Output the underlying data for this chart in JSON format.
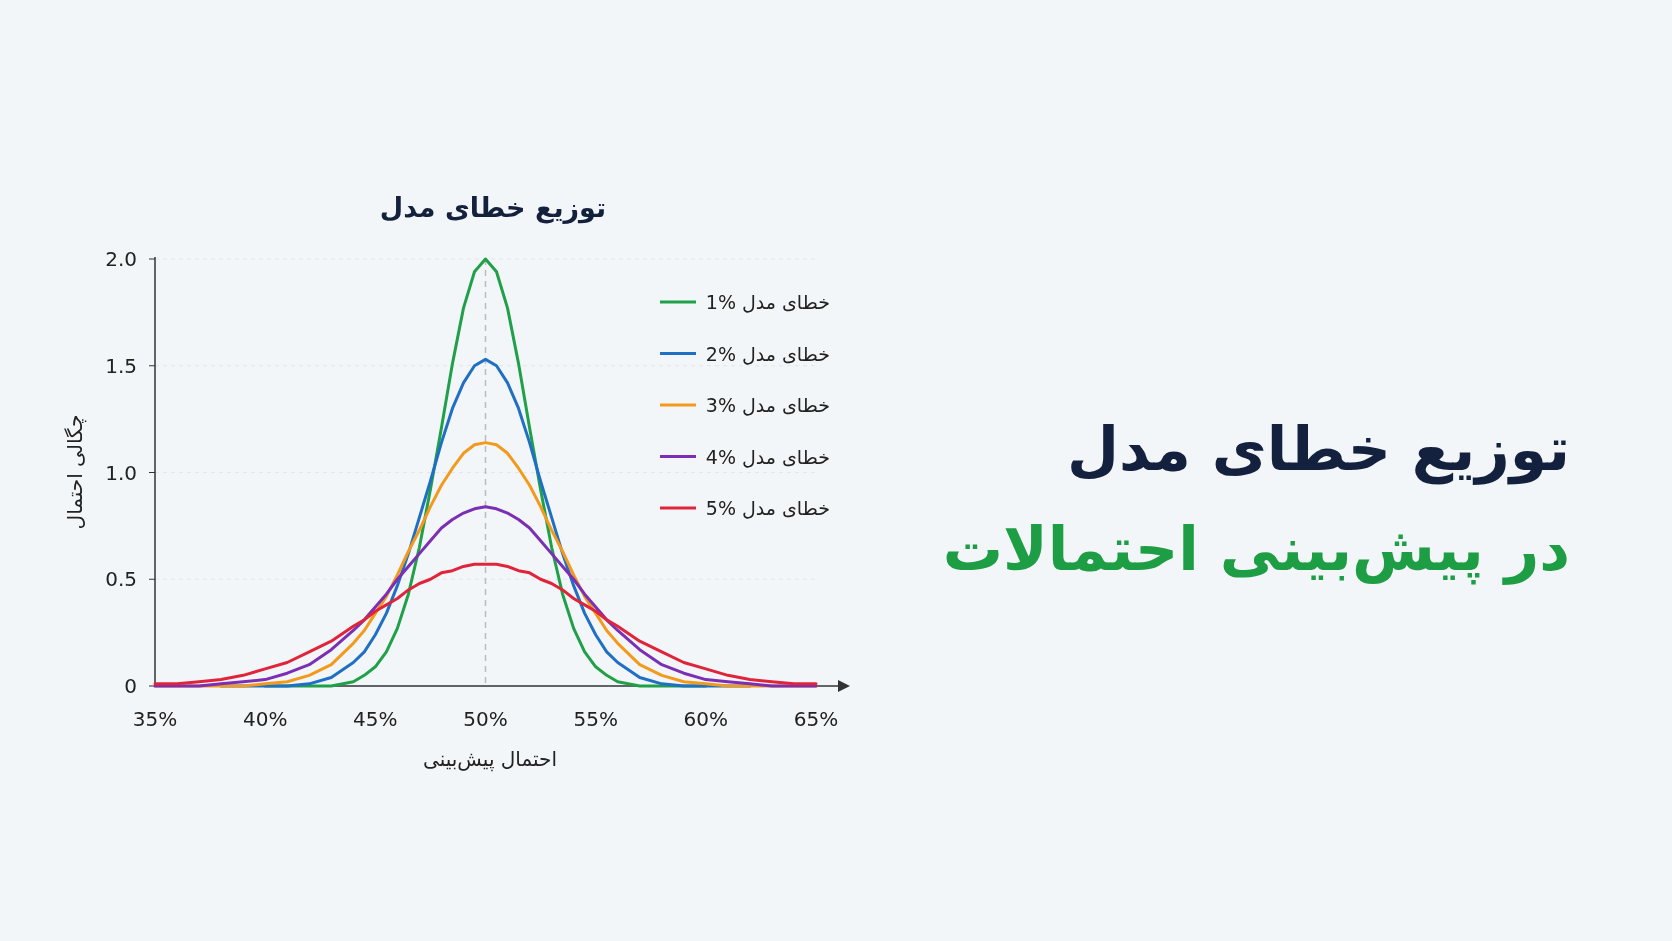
{
  "chart_data": {
    "type": "line",
    "title": "توزیع خطای مدل",
    "xlabel": "احتمال پیش‌بینی",
    "ylabel": "چگالی احتمال",
    "annotations": [
      "توزیع خطای مدل",
      "در پیش‌بینی احتمالات"
    ],
    "x": [
      35,
      36,
      37,
      38,
      39,
      40,
      41,
      42,
      43,
      44,
      44.5,
      45,
      45.5,
      46,
      46.5,
      47,
      47.5,
      48,
      48.5,
      49,
      49.5,
      50,
      50.5,
      51,
      51.5,
      52,
      52.5,
      53,
      53.5,
      54,
      54.5,
      55,
      55.5,
      56,
      57,
      58,
      59,
      60,
      61,
      62,
      63,
      64,
      65
    ],
    "xlim": [
      35,
      65
    ],
    "xticks": [
      {
        "value": 35,
        "label": "35%"
      },
      {
        "value": 40,
        "label": "40%"
      },
      {
        "value": 45,
        "label": "45%"
      },
      {
        "value": 50,
        "label": "50%"
      },
      {
        "value": 55,
        "label": "55%"
      },
      {
        "value": 60,
        "label": "60%"
      },
      {
        "value": 65,
        "label": "65%"
      }
    ],
    "ylim": [
      0,
      2.0
    ],
    "yticks": [
      0,
      0.5,
      {
        "value": 1.0,
        "label": "1.0"
      },
      1.5,
      {
        "value": 2.0,
        "label": "2.0"
      }
    ],
    "grid": "y",
    "legend": "top right",
    "marker": "none",
    "line_style": "solid",
    "ref_lines": [
      {
        "axis": "x",
        "value": 50,
        "color": "#bbbbbb",
        "line_style": "dashed"
      }
    ],
    "series": [
      {
        "name": "خطای مدل %1",
        "color": "#1fa049",
        "values": [
          null,
          null,
          null,
          null,
          null,
          0,
          0,
          0,
          0,
          0.02,
          0.05,
          0.09,
          0.16,
          0.27,
          0.43,
          0.65,
          0.92,
          1.21,
          1.51,
          1.77,
          1.94,
          2.0,
          1.94,
          1.77,
          1.51,
          1.21,
          0.92,
          0.65,
          0.43,
          0.27,
          0.16,
          0.09,
          0.05,
          0.02,
          0,
          0,
          0,
          0,
          null,
          null,
          null,
          null,
          null
        ]
      },
      {
        "name": "خطای مدل %2",
        "color": "#1f6fc5",
        "values": [
          null,
          null,
          null,
          0,
          0,
          0,
          0,
          0.01,
          0.04,
          0.11,
          0.16,
          0.24,
          0.34,
          0.47,
          0.62,
          0.79,
          0.96,
          1.14,
          1.3,
          1.42,
          1.5,
          1.53,
          1.5,
          1.42,
          1.3,
          1.14,
          0.96,
          0.79,
          0.62,
          0.47,
          0.34,
          0.24,
          0.16,
          0.11,
          0.04,
          0.01,
          0,
          0,
          0,
          0,
          null,
          null,
          null
        ]
      },
      {
        "name": "خطای مدل %3",
        "color": "#f39a1c",
        "values": [
          0,
          0,
          0,
          0,
          0,
          0.01,
          0.02,
          0.05,
          0.1,
          0.2,
          0.26,
          0.34,
          0.42,
          0.52,
          0.63,
          0.73,
          0.84,
          0.94,
          1.02,
          1.09,
          1.13,
          1.14,
          1.13,
          1.09,
          1.02,
          0.94,
          0.84,
          0.73,
          0.63,
          0.52,
          0.42,
          0.34,
          0.26,
          0.2,
          0.1,
          0.05,
          0.02,
          0.01,
          0,
          0,
          0,
          0,
          0
        ]
      },
      {
        "name": "خطای مدل %4",
        "color": "#7b2fb5",
        "values": [
          0,
          0,
          0,
          0.01,
          0.02,
          0.03,
          0.06,
          0.1,
          0.17,
          0.26,
          0.31,
          0.37,
          0.43,
          0.5,
          0.56,
          0.62,
          0.68,
          0.74,
          0.78,
          0.81,
          0.83,
          0.84,
          0.83,
          0.81,
          0.78,
          0.74,
          0.68,
          0.62,
          0.56,
          0.5,
          0.43,
          0.37,
          0.31,
          0.26,
          0.17,
          0.1,
          0.06,
          0.03,
          0.02,
          0.01,
          0,
          0,
          0
        ]
      },
      {
        "name": "خطای مدل %5",
        "color": "#e0243a",
        "values": [
          0.01,
          0.01,
          0.02,
          0.03,
          0.05,
          0.08,
          0.11,
          0.16,
          0.21,
          0.28,
          0.31,
          0.35,
          0.38,
          0.41,
          0.45,
          0.48,
          0.5,
          0.53,
          0.54,
          0.56,
          0.57,
          0.57,
          0.57,
          0.56,
          0.54,
          0.53,
          0.5,
          0.48,
          0.45,
          0.41,
          0.38,
          0.35,
          0.31,
          0.28,
          0.21,
          0.16,
          0.11,
          0.08,
          0.05,
          0.03,
          0.02,
          0.01,
          0.01
        ]
      }
    ]
  }
}
